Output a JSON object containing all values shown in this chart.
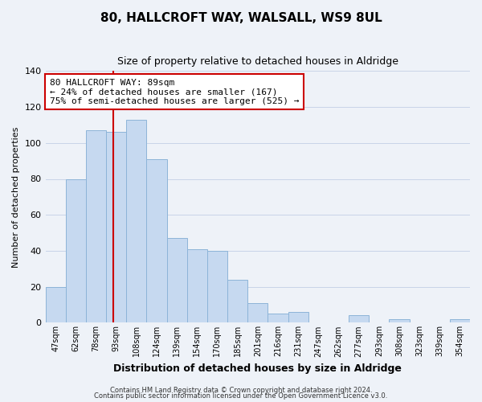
{
  "title": "80, HALLCROFT WAY, WALSALL, WS9 8UL",
  "subtitle": "Size of property relative to detached houses in Aldridge",
  "xlabel": "Distribution of detached houses by size in Aldridge",
  "ylabel": "Number of detached properties",
  "bar_labels": [
    "47sqm",
    "62sqm",
    "78sqm",
    "93sqm",
    "108sqm",
    "124sqm",
    "139sqm",
    "154sqm",
    "170sqm",
    "185sqm",
    "201sqm",
    "216sqm",
    "231sqm",
    "247sqm",
    "262sqm",
    "277sqm",
    "293sqm",
    "308sqm",
    "323sqm",
    "339sqm",
    "354sqm"
  ],
  "bar_values": [
    20,
    80,
    107,
    106,
    113,
    91,
    47,
    41,
    40,
    24,
    11,
    5,
    6,
    0,
    0,
    4,
    0,
    2,
    0,
    0,
    2
  ],
  "bar_color": "#c6d9f0",
  "bar_edge_color": "#8db4d8",
  "vline_color": "#cc0000",
  "annotation_text": "80 HALLCROFT WAY: 89sqm\n← 24% of detached houses are smaller (167)\n75% of semi-detached houses are larger (525) →",
  "annotation_box_color": "#ffffff",
  "annotation_box_edge": "#cc0000",
  "ylim": [
    0,
    140
  ],
  "yticks": [
    0,
    20,
    40,
    60,
    80,
    100,
    120,
    140
  ],
  "footer1": "Contains HM Land Registry data © Crown copyright and database right 2024.",
  "footer2": "Contains public sector information licensed under the Open Government Licence v3.0.",
  "bg_color": "#eef2f8",
  "grid_color": "#c8d4e8"
}
